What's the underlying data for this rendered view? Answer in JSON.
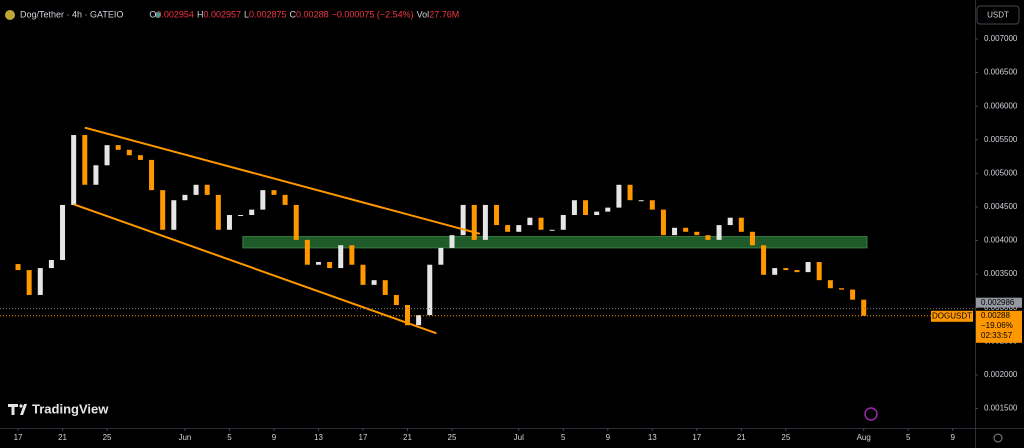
{
  "chart_data": {
    "type": "candlestick",
    "header": {
      "symbol": "Dog/Tether · 4h · GATEIO",
      "o_label": "O",
      "open": 0.002954,
      "h_label": "H",
      "high": 0.002957,
      "l_label": "L",
      "low": 0.002875,
      "c_label": "C",
      "close": 0.00288,
      "change": "−0.000075 (−2.54%)",
      "vol_label": "Vol",
      "volume": "27.76M"
    },
    "currency": "USDT",
    "brand": "TradingView",
    "up_color": "#e6e6e6",
    "down_color": "#ff9800",
    "x": [
      0,
      1,
      2,
      3,
      4,
      5,
      6,
      7,
      8,
      9,
      10,
      11,
      12,
      13,
      14,
      15,
      16,
      17,
      18,
      19,
      20,
      21,
      22,
      23,
      24,
      25,
      26,
      27,
      28,
      29,
      30,
      31,
      32,
      33,
      34,
      35,
      36,
      37,
      38,
      39,
      40,
      41,
      42,
      43,
      44,
      45,
      46,
      47,
      48,
      49,
      50,
      51,
      52,
      53,
      54,
      55,
      56,
      57,
      58,
      59,
      60,
      61,
      62,
      63,
      64,
      65,
      66,
      67,
      68,
      69,
      70,
      71,
      72,
      73,
      74,
      75,
      76
    ],
    "open": [
      0.00365,
      0.00356,
      0.00319,
      0.00359,
      0.00371,
      0.00453,
      0.00557,
      0.00483,
      0.00512,
      0.00542,
      0.00535,
      0.00527,
      0.0052,
      0.00475,
      0.00416,
      0.0046,
      0.00468,
      0.00483,
      0.00468,
      0.00416,
      0.00438,
      0.00438,
      0.00446,
      0.00475,
      0.00468,
      0.00453,
      0.00401,
      0.00364,
      0.00368,
      0.00359,
      0.00393,
      0.00364,
      0.00334,
      0.00341,
      0.00319,
      0.00304,
      0.00274,
      0.00289,
      0.00364,
      0.00389,
      0.00408,
      0.00453,
      0.00401,
      0.00453,
      0.00423,
      0.00413,
      0.00423,
      0.00434,
      0.00416,
      0.00416,
      0.00438,
      0.0046,
      0.00438,
      0.00443,
      0.00449,
      0.00483,
      0.0046,
      0.0046,
      0.00446,
      0.00408,
      0.00419,
      0.00413,
      0.00408,
      0.00401,
      0.00423,
      0.00434,
      0.00413,
      0.00393,
      0.00349,
      0.00359,
      0.00356,
      0.00353,
      0.00368,
      0.00341,
      0.00329,
      0.00327,
      0.00312
    ],
    "close": [
      0.00356,
      0.00319,
      0.00359,
      0.00371,
      0.00453,
      0.00557,
      0.00483,
      0.00512,
      0.00542,
      0.00535,
      0.00527,
      0.0052,
      0.00475,
      0.00416,
      0.0046,
      0.00468,
      0.00483,
      0.00468,
      0.00416,
      0.00438,
      0.00438,
      0.00446,
      0.00475,
      0.00468,
      0.00453,
      0.00401,
      0.00364,
      0.00368,
      0.00359,
      0.00393,
      0.00364,
      0.00334,
      0.00341,
      0.00319,
      0.00304,
      0.00274,
      0.00289,
      0.00364,
      0.00389,
      0.00408,
      0.00453,
      0.00401,
      0.00453,
      0.00423,
      0.00413,
      0.00423,
      0.00434,
      0.00416,
      0.00416,
      0.00438,
      0.0046,
      0.00438,
      0.00443,
      0.00449,
      0.00483,
      0.0046,
      0.0046,
      0.00446,
      0.00408,
      0.00419,
      0.00413,
      0.00408,
      0.00401,
      0.00423,
      0.00434,
      0.00413,
      0.00393,
      0.00349,
      0.00359,
      0.00356,
      0.00353,
      0.00368,
      0.00341,
      0.00329,
      0.00327,
      0.00312,
      0.00288
    ],
    "xlim": [
      -1.62,
      86
    ],
    "ylim": [
      0.00121,
      0.00758
    ],
    "yticks": [
      {
        "value": 0.007,
        "label": "0.007000"
      },
      {
        "value": 0.0065,
        "label": "0.006500"
      },
      {
        "value": 0.006,
        "label": "0.006000"
      },
      {
        "value": 0.0055,
        "label": "0.005500"
      },
      {
        "value": 0.005,
        "label": "0.005000"
      },
      {
        "value": 0.0045,
        "label": "0.004500"
      },
      {
        "value": 0.004,
        "label": "0.004000"
      },
      {
        "value": 0.0035,
        "label": "0.003500"
      },
      {
        "value": 0.003,
        "label": "0.003000"
      },
      {
        "value": 0.0025,
        "label": "0.002500"
      },
      {
        "value": 0.002,
        "label": "0.002000"
      },
      {
        "value": 0.0015,
        "label": "0.001500"
      }
    ],
    "xticks": [
      {
        "value": 0,
        "label": "17"
      },
      {
        "value": 4,
        "label": "21"
      },
      {
        "value": 8,
        "label": "25"
      },
      {
        "value": 15,
        "label": "Jun"
      },
      {
        "value": 19,
        "label": "5"
      },
      {
        "value": 23,
        "label": "9"
      },
      {
        "value": 27,
        "label": "13"
      },
      {
        "value": 31,
        "label": "17"
      },
      {
        "value": 35,
        "label": "21"
      },
      {
        "value": 39,
        "label": "25"
      },
      {
        "value": 45,
        "label": "Jul"
      },
      {
        "value": 49,
        "label": "5"
      },
      {
        "value": 53,
        "label": "9"
      },
      {
        "value": 57,
        "label": "13"
      },
      {
        "value": 61,
        "label": "17"
      },
      {
        "value": 65,
        "label": "21"
      },
      {
        "value": 69,
        "label": "25"
      },
      {
        "value": 76,
        "label": "Aug"
      },
      {
        "value": 80,
        "label": "5"
      },
      {
        "value": 84,
        "label": "9"
      }
    ],
    "trend_lines": [
      {
        "x": [
          6,
          41.5
        ],
        "y": [
          0.00568,
          0.0041
        ],
        "color": "#ff9800"
      },
      {
        "x": [
          5,
          37.6
        ],
        "y": [
          0.00454,
          0.00262
        ],
        "color": "#ff9800"
      }
    ],
    "zone": {
      "x": [
        20.2,
        76.3
      ],
      "y": [
        0.00389,
        0.00406
      ],
      "color": "#1e5a2a"
    },
    "last_price_tag": {
      "symbol": "DOGUSDT",
      "price": 0.00288,
      "change": "−19.06%",
      "countdown": "02:33:57"
    },
    "prev_price_tag": {
      "price": 0.002986
    }
  }
}
